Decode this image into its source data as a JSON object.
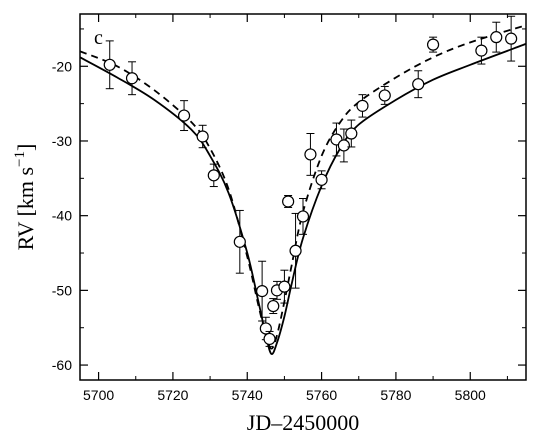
{
  "chart_data": {
    "type": "scatter",
    "panel_label": "c",
    "xlabel": "JD–2450000",
    "ylabel": "RV [km s",
    "ylabel_sup": "−1",
    "ylabel_close": "]",
    "xlim": [
      5695,
      5815
    ],
    "ylim": [
      -62,
      -13
    ],
    "x_ticks": [
      5700,
      5720,
      5740,
      5760,
      5780,
      5800
    ],
    "y_ticks": [
      -20,
      -30,
      -40,
      -50,
      -60
    ],
    "grid": false,
    "series": [
      {
        "marker": "open-circle",
        "points": [
          {
            "x": 5703,
            "y": -19.8,
            "err": 3.2
          },
          {
            "x": 5709,
            "y": -21.6,
            "err": 2.2
          },
          {
            "x": 5723,
            "y": -26.6,
            "err": 2.0
          },
          {
            "x": 5728,
            "y": -29.4,
            "err": 1.5
          },
          {
            "x": 5731,
            "y": -34.6,
            "err": 1.5
          },
          {
            "x": 5738,
            "y": -43.5,
            "err": 4.2
          },
          {
            "x": 5744,
            "y": -50.1,
            "err": 4.0
          },
          {
            "x": 5745,
            "y": -55.1,
            "err": 1.5
          },
          {
            "x": 5746,
            "y": -56.5,
            "err": 1.0
          },
          {
            "x": 5747,
            "y": -52.1,
            "err": 1.0
          },
          {
            "x": 5748,
            "y": -50.0,
            "err": 1.2
          },
          {
            "x": 5750,
            "y": -49.5,
            "err": 2.2
          },
          {
            "x": 5751,
            "y": -38.1,
            "err": 0.8
          },
          {
            "x": 5753,
            "y": -44.7,
            "err": 5.0
          },
          {
            "x": 5755,
            "y": -40.1,
            "err": 2.4
          },
          {
            "x": 5757,
            "y": -31.8,
            "err": 2.8
          },
          {
            "x": 5760,
            "y": -35.2,
            "err": 1.2
          },
          {
            "x": 5764,
            "y": -29.8,
            "err": 2.2
          },
          {
            "x": 5766,
            "y": -30.6,
            "err": 2.2
          },
          {
            "x": 5768,
            "y": -29.0,
            "err": 1.8
          },
          {
            "x": 5771,
            "y": -25.3,
            "err": 1.5
          },
          {
            "x": 5777,
            "y": -23.9,
            "err": 1.2
          },
          {
            "x": 5786,
            "y": -22.4,
            "err": 1.8
          },
          {
            "x": 5790,
            "y": -17.1,
            "err": 1.0
          },
          {
            "x": 5803,
            "y": -17.9,
            "err": 1.8
          },
          {
            "x": 5807,
            "y": -16.1,
            "err": 2.0
          },
          {
            "x": 5811,
            "y": -16.3,
            "err": 3.0
          }
        ]
      }
    ],
    "curves": [
      {
        "style": "solid",
        "x": [
          5695,
          5705,
          5715,
          5725,
          5730,
          5735,
          5740,
          5743,
          5745,
          5746.5,
          5748,
          5750,
          5752,
          5755,
          5760,
          5765,
          5770,
          5780,
          5790,
          5800,
          5815
        ],
        "y": [
          -18.8,
          -21.5,
          -24.5,
          -28.5,
          -32.0,
          -37.0,
          -45.0,
          -51.5,
          -56.0,
          -58.5,
          -57.0,
          -53.5,
          -49.0,
          -43.0,
          -36.0,
          -31.0,
          -27.8,
          -24.5,
          -21.8,
          -19.8,
          -17.0
        ]
      },
      {
        "style": "dashed",
        "x": [
          5695,
          5705,
          5715,
          5725,
          5730,
          5735,
          5740,
          5743,
          5745,
          5746.5,
          5748,
          5750,
          5752,
          5755,
          5760,
          5765,
          5770,
          5780,
          5790,
          5800,
          5815
        ],
        "y": [
          -18.0,
          -20.0,
          -23.2,
          -27.5,
          -31.0,
          -36.5,
          -45.5,
          -52.0,
          -56.0,
          -57.8,
          -56.0,
          -51.5,
          -46.5,
          -39.5,
          -32.0,
          -27.5,
          -24.8,
          -21.5,
          -18.8,
          -16.8,
          -14.5
        ]
      }
    ]
  }
}
